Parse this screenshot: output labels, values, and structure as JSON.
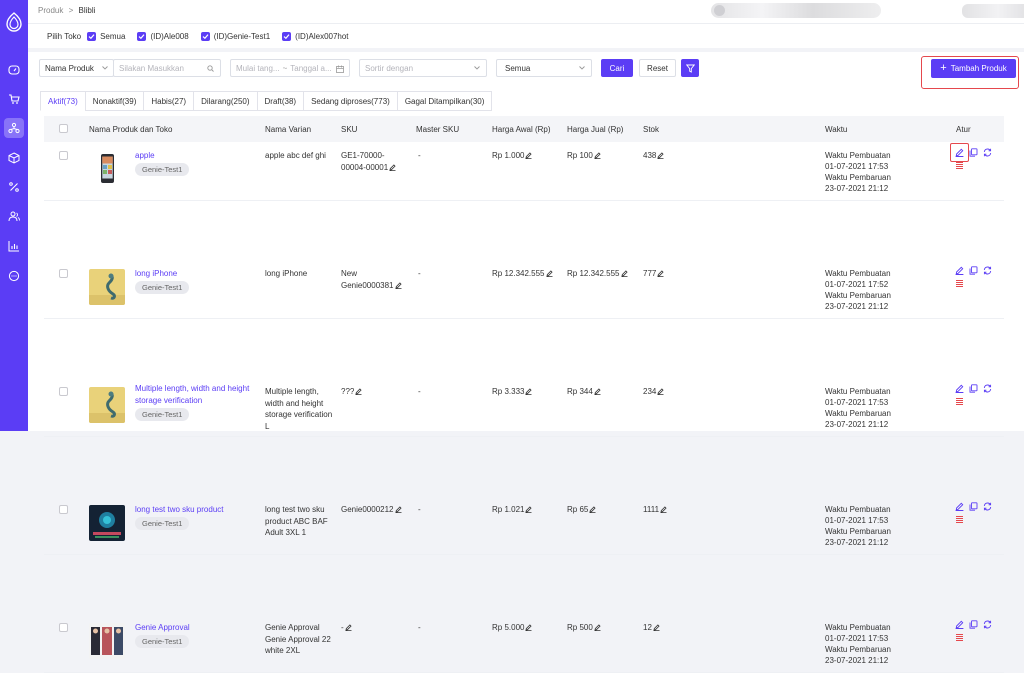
{
  "breadcrumb": {
    "parent": "Produk",
    "separator": ">",
    "current": "Blibli"
  },
  "shop_filter": {
    "label": "Pilih Toko",
    "options": [
      {
        "label": "Semua",
        "checked": true
      },
      {
        "label": "(ID)Ale008",
        "checked": true
      },
      {
        "label": "(ID)Genie-Test1",
        "checked": true
      },
      {
        "label": "(ID)Alex007hot",
        "checked": true
      }
    ]
  },
  "filters": {
    "field_select": "Nama Produk",
    "search_placeholder": "Silakan Masukkan",
    "date_start_placeholder": "Mulai tang...",
    "date_sep": "~",
    "date_end_placeholder": "Tanggal a...",
    "sort_placeholder": "Sortir dengan",
    "status_select": "Semua",
    "search_button": "Cari",
    "reset_button": "Reset"
  },
  "add_button": {
    "icon": "+",
    "label": "Tambah Produk"
  },
  "tabs": [
    {
      "label": "Aktif(73)",
      "active": true
    },
    {
      "label": "Nonaktif(39)"
    },
    {
      "label": "Habis(27)"
    },
    {
      "label": "Dilarang(250)"
    },
    {
      "label": "Draft(38)"
    },
    {
      "label": "Sedang diproses(773)"
    },
    {
      "label": "Gagal Ditampilkan(30)"
    }
  ],
  "columns": {
    "name": "Nama Produk dan Toko",
    "variant": "Nama Varian",
    "sku": "SKU",
    "master_sku": "Master SKU",
    "price_initial": "Harga Awal (Rp)",
    "price_sell": "Harga Jual (Rp)",
    "stock": "Stok",
    "time": "Waktu",
    "actions": "Atur"
  },
  "rows": [
    {
      "name": "apple",
      "shop": "Genie-Test1",
      "variant": "apple abc def ghi",
      "sku": "GE1-70000-00004-00001",
      "master_sku": "-",
      "price_initial": "Rp 1.000",
      "price_sell": "Rp 100",
      "stock": "438",
      "created_label": "Waktu Pembuatan",
      "created": "01-07-2021 17:53",
      "updated_label": "Waktu Pembaruan",
      "updated": "23-07-2021 21:12",
      "thumb": "phone"
    },
    {
      "name": "long iPhone",
      "shop": "Genie-Test1",
      "variant": "long iPhone",
      "sku": "New Genie0000381",
      "master_sku": "-",
      "price_initial": "Rp 12.342.555",
      "price_sell": "Rp 12.342.555",
      "stock": "777",
      "created_label": "Waktu Pembuatan",
      "created": "01-07-2021 17:52",
      "updated_label": "Waktu Pembaruan",
      "updated": "23-07-2021 21:12",
      "thumb": "yellow"
    },
    {
      "name": "Multiple length, width and height storage verification",
      "shop": "Genie-Test1",
      "variant": "Multiple length, width and height storage verification L",
      "sku": "???",
      "master_sku": "-",
      "price_initial": "Rp 3.333",
      "price_sell": "Rp 344",
      "stock": "234",
      "created_label": "Waktu Pembuatan",
      "created": "01-07-2021 17:53",
      "updated_label": "Waktu Pembaruan",
      "updated": "23-07-2021 21:12",
      "thumb": "yellow"
    },
    {
      "name": "long test two sku product",
      "shop": "Genie-Test1",
      "variant": "long test two sku product ABC BAF Adult 3XL 1",
      "sku": "Genie0000212",
      "master_sku": "-",
      "price_initial": "Rp 1.021",
      "price_sell": "Rp 65",
      "stock": "1111",
      "created_label": "Waktu Pembuatan",
      "created": "01-07-2021 17:53",
      "updated_label": "Waktu Pembaruan",
      "updated": "23-07-2021 21:12",
      "thumb": "dark"
    },
    {
      "name": "Genie Approval",
      "shop": "Genie-Test1",
      "variant": "Genie Approval Genie Approval 22 white 2XL",
      "sku": "-",
      "master_sku": "-",
      "price_initial": "Rp 5.000",
      "price_sell": "Rp 500",
      "stock": "12",
      "created_label": "Waktu Pembuatan",
      "created": "01-07-2021 17:53",
      "updated_label": "Waktu Pembaruan",
      "updated": "23-07-2021 21:12",
      "thumb": "people"
    }
  ],
  "colors": {
    "accent": "#5b3df5",
    "highlight": "#e5484d",
    "delete": "#e5484d"
  }
}
